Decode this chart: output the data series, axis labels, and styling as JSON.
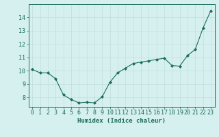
{
  "x": [
    0,
    1,
    2,
    3,
    4,
    5,
    6,
    7,
    8,
    9,
    10,
    11,
    12,
    13,
    14,
    15,
    16,
    17,
    18,
    19,
    20,
    21,
    22,
    23
  ],
  "y": [
    10.1,
    9.85,
    9.85,
    9.4,
    8.2,
    7.85,
    7.6,
    7.65,
    7.6,
    8.05,
    9.15,
    9.85,
    10.2,
    10.55,
    10.65,
    10.75,
    10.85,
    10.95,
    10.4,
    10.35,
    11.15,
    11.6,
    13.2,
    14.5
  ],
  "line_color": "#1a6b5a",
  "marker": "D",
  "marker_size": 2.2,
  "bg_color": "#d6f0ef",
  "grid_color": "#c0dedd",
  "axis_color": "#1a6b5a",
  "xlabel": "Humidex (Indice chaleur)",
  "xlabel_fontsize": 6.5,
  "tick_fontsize": 6,
  "xlim": [
    -0.5,
    23.5
  ],
  "ylim": [
    7.3,
    15.0
  ],
  "yticks": [
    8,
    9,
    10,
    11,
    12,
    13,
    14
  ],
  "xticks": [
    0,
    1,
    2,
    3,
    4,
    5,
    6,
    7,
    8,
    9,
    10,
    11,
    12,
    13,
    14,
    15,
    16,
    17,
    18,
    19,
    20,
    21,
    22,
    23
  ]
}
